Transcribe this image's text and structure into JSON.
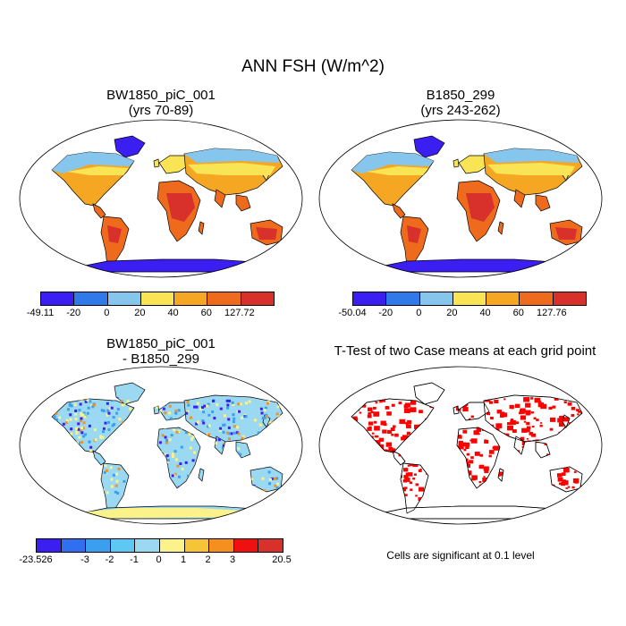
{
  "title": "ANN FSH (W/m^2)",
  "panels": {
    "p1": {
      "title_line1": "BW1850_piC_001",
      "title_line2": "(yrs 70-89)"
    },
    "p2": {
      "title_line1": "B1850_299",
      "title_line2": "(yrs 243-262)"
    },
    "p3": {
      "title_line1": "BW1850_piC_001",
      "title_line2": "- B1850_299"
    },
    "p4": {
      "title_line1": "T-Test of two Case means at each grid point",
      "note": "Cells are significant at 0.1 level"
    }
  },
  "colorbars": {
    "cb1": {
      "labels": [
        "-49.11",
        "-20",
        "0",
        "20",
        "40",
        "60",
        "127.72"
      ],
      "colors": [
        "#3b1ff2",
        "#2f7ae8",
        "#86c6ec",
        "#f8e454",
        "#f5a623",
        "#ee6b1e",
        "#d8302a"
      ]
    },
    "cb2": {
      "labels": [
        "-50.04",
        "-20",
        "0",
        "20",
        "40",
        "60",
        "127.76"
      ],
      "colors": [
        "#3b1ff2",
        "#2f7ae8",
        "#86c6ec",
        "#f8e454",
        "#f5a623",
        "#ee6b1e",
        "#d8302a"
      ]
    },
    "cb3": {
      "labels": [
        "-23.526",
        "-3",
        "-2",
        "-1",
        "0",
        "1",
        "2",
        "3",
        "20.5"
      ],
      "colors": [
        "#3b1ff2",
        "#2f6ff0",
        "#3b9ff0",
        "#5cc8f3",
        "#9ad9f1",
        "#fcf28a",
        "#f8c437",
        "#f5901f",
        "#f01010",
        "#d8302a"
      ]
    }
  },
  "map_colors": {
    "ocean": "#ffffff",
    "coast": "#000000",
    "significant": "#ff0000",
    "p1": {
      "arctic": "#86c6ec",
      "north": "#f8e454",
      "mid": "#f5a623",
      "hot": "#ee6b1e",
      "vhot": "#d8302a",
      "ice": "#3b1ff2"
    },
    "p3": {
      "base": "#9ad9f1",
      "pos": "#fcf28a",
      "neg": "#3b9ff0",
      "vneg": "#3b1ff2",
      "strong": "#f5901f",
      "ice": "#9ad9f1",
      "iceedge": "#fcf28a"
    }
  }
}
